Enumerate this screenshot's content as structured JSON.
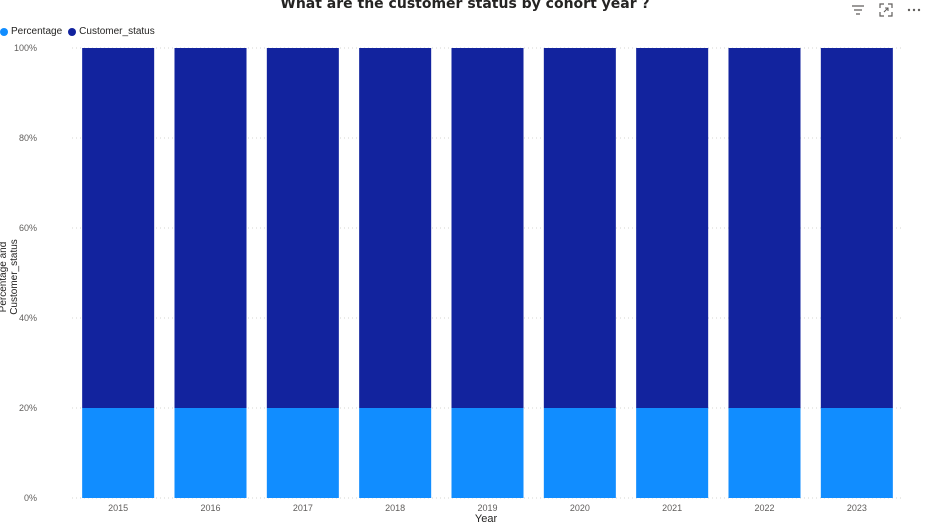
{
  "chart_data": {
    "type": "bar",
    "stacked": true,
    "title": "What are the customer status by cohort year ?",
    "xlabel": "Year",
    "ylabel": "Percentage and Customer_status",
    "categories": [
      "2015",
      "2016",
      "2017",
      "2018",
      "2019",
      "2020",
      "2021",
      "2022",
      "2023"
    ],
    "series": [
      {
        "name": "Percentage",
        "color": "#118DFF",
        "values": [
          20,
          20,
          20,
          20,
          20,
          20,
          20,
          20,
          20
        ]
      },
      {
        "name": "Customer_status",
        "color": "#12239E",
        "values": [
          80,
          80,
          80,
          80,
          80,
          80,
          80,
          80,
          80
        ]
      }
    ],
    "ylim": [
      0,
      100
    ],
    "yticks": [
      "0%",
      "20%",
      "40%",
      "60%",
      "80%",
      "100%"
    ],
    "grid": true,
    "legend_position": "top-left"
  },
  "toolbar": {
    "icons": [
      "filter-icon",
      "focus-mode-icon",
      "more-options-icon"
    ]
  }
}
